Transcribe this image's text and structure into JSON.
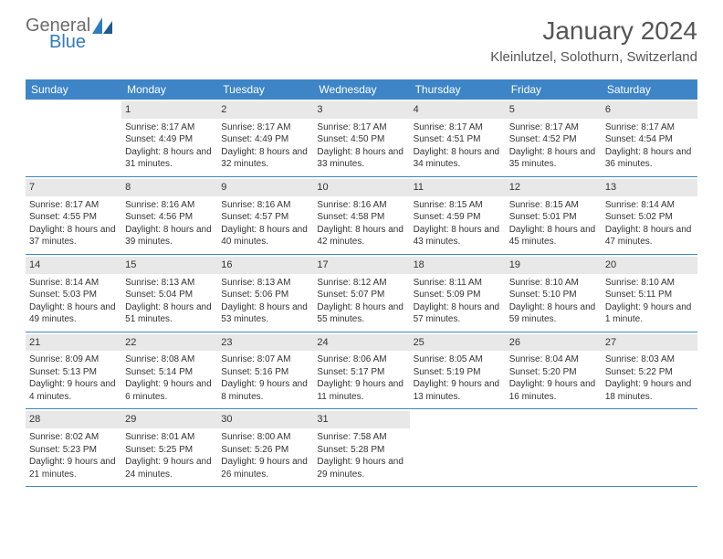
{
  "brand": {
    "top": "General",
    "bottom": "Blue"
  },
  "title": "January 2024",
  "location": "Kleinlutzel, Solothurn, Switzerland",
  "colors": {
    "header_bg": "#3d85c6",
    "header_text": "#ffffff",
    "daynum_bg": "#e8e8e8",
    "border": "#3d85c6",
    "logo_gray": "#6b6b6b",
    "logo_blue": "#2f7bbf",
    "text": "#333333",
    "bg": "#ffffff"
  },
  "day_names": [
    "Sunday",
    "Monday",
    "Tuesday",
    "Wednesday",
    "Thursday",
    "Friday",
    "Saturday"
  ],
  "first_weekday": 1,
  "days": [
    {
      "n": 1,
      "sr": "8:17 AM",
      "ss": "4:49 PM",
      "dl": "8 hours and 31 minutes."
    },
    {
      "n": 2,
      "sr": "8:17 AM",
      "ss": "4:49 PM",
      "dl": "8 hours and 32 minutes."
    },
    {
      "n": 3,
      "sr": "8:17 AM",
      "ss": "4:50 PM",
      "dl": "8 hours and 33 minutes."
    },
    {
      "n": 4,
      "sr": "8:17 AM",
      "ss": "4:51 PM",
      "dl": "8 hours and 34 minutes."
    },
    {
      "n": 5,
      "sr": "8:17 AM",
      "ss": "4:52 PM",
      "dl": "8 hours and 35 minutes."
    },
    {
      "n": 6,
      "sr": "8:17 AM",
      "ss": "4:54 PM",
      "dl": "8 hours and 36 minutes."
    },
    {
      "n": 7,
      "sr": "8:17 AM",
      "ss": "4:55 PM",
      "dl": "8 hours and 37 minutes."
    },
    {
      "n": 8,
      "sr": "8:16 AM",
      "ss": "4:56 PM",
      "dl": "8 hours and 39 minutes."
    },
    {
      "n": 9,
      "sr": "8:16 AM",
      "ss": "4:57 PM",
      "dl": "8 hours and 40 minutes."
    },
    {
      "n": 10,
      "sr": "8:16 AM",
      "ss": "4:58 PM",
      "dl": "8 hours and 42 minutes."
    },
    {
      "n": 11,
      "sr": "8:15 AM",
      "ss": "4:59 PM",
      "dl": "8 hours and 43 minutes."
    },
    {
      "n": 12,
      "sr": "8:15 AM",
      "ss": "5:01 PM",
      "dl": "8 hours and 45 minutes."
    },
    {
      "n": 13,
      "sr": "8:14 AM",
      "ss": "5:02 PM",
      "dl": "8 hours and 47 minutes."
    },
    {
      "n": 14,
      "sr": "8:14 AM",
      "ss": "5:03 PM",
      "dl": "8 hours and 49 minutes."
    },
    {
      "n": 15,
      "sr": "8:13 AM",
      "ss": "5:04 PM",
      "dl": "8 hours and 51 minutes."
    },
    {
      "n": 16,
      "sr": "8:13 AM",
      "ss": "5:06 PM",
      "dl": "8 hours and 53 minutes."
    },
    {
      "n": 17,
      "sr": "8:12 AM",
      "ss": "5:07 PM",
      "dl": "8 hours and 55 minutes."
    },
    {
      "n": 18,
      "sr": "8:11 AM",
      "ss": "5:09 PM",
      "dl": "8 hours and 57 minutes."
    },
    {
      "n": 19,
      "sr": "8:10 AM",
      "ss": "5:10 PM",
      "dl": "8 hours and 59 minutes."
    },
    {
      "n": 20,
      "sr": "8:10 AM",
      "ss": "5:11 PM",
      "dl": "9 hours and 1 minute."
    },
    {
      "n": 21,
      "sr": "8:09 AM",
      "ss": "5:13 PM",
      "dl": "9 hours and 4 minutes."
    },
    {
      "n": 22,
      "sr": "8:08 AM",
      "ss": "5:14 PM",
      "dl": "9 hours and 6 minutes."
    },
    {
      "n": 23,
      "sr": "8:07 AM",
      "ss": "5:16 PM",
      "dl": "9 hours and 8 minutes."
    },
    {
      "n": 24,
      "sr": "8:06 AM",
      "ss": "5:17 PM",
      "dl": "9 hours and 11 minutes."
    },
    {
      "n": 25,
      "sr": "8:05 AM",
      "ss": "5:19 PM",
      "dl": "9 hours and 13 minutes."
    },
    {
      "n": 26,
      "sr": "8:04 AM",
      "ss": "5:20 PM",
      "dl": "9 hours and 16 minutes."
    },
    {
      "n": 27,
      "sr": "8:03 AM",
      "ss": "5:22 PM",
      "dl": "9 hours and 18 minutes."
    },
    {
      "n": 28,
      "sr": "8:02 AM",
      "ss": "5:23 PM",
      "dl": "9 hours and 21 minutes."
    },
    {
      "n": 29,
      "sr": "8:01 AM",
      "ss": "5:25 PM",
      "dl": "9 hours and 24 minutes."
    },
    {
      "n": 30,
      "sr": "8:00 AM",
      "ss": "5:26 PM",
      "dl": "9 hours and 26 minutes."
    },
    {
      "n": 31,
      "sr": "7:58 AM",
      "ss": "5:28 PM",
      "dl": "9 hours and 29 minutes."
    }
  ],
  "labels": {
    "sunrise": "Sunrise:",
    "sunset": "Sunset:",
    "daylight": "Daylight:"
  }
}
